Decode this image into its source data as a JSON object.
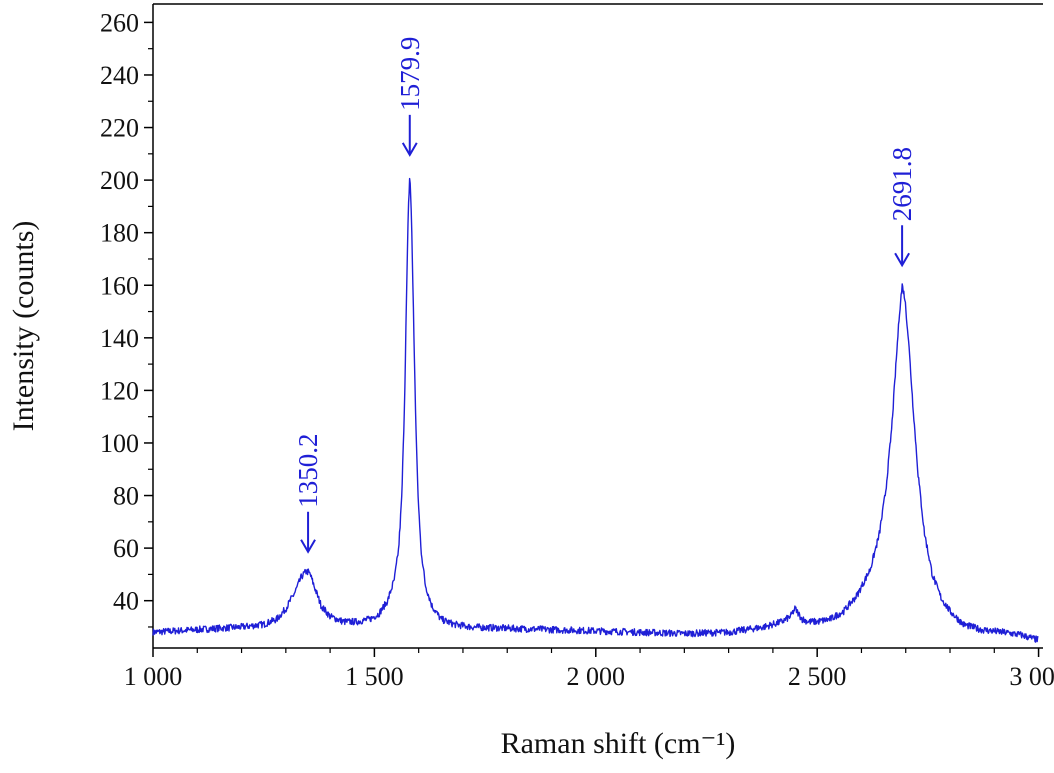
{
  "chart_data": {
    "type": "line",
    "title": "",
    "xlabel": "Raman shift (cm⁻¹)",
    "ylabel": "Intensity (counts)",
    "xlim": [
      1000,
      3010
    ],
    "ylim": [
      22,
      267
    ],
    "grid": false,
    "legend": "none",
    "color": "#1f1fd6",
    "x_ticks": [
      {
        "value": 1000,
        "label": "1 000"
      },
      {
        "value": 1500,
        "label": "1 500"
      },
      {
        "value": 2000,
        "label": "2 000"
      },
      {
        "value": 2500,
        "label": "2 500"
      },
      {
        "value": 3000,
        "label": "3 000"
      }
    ],
    "y_ticks": [
      {
        "value": 40,
        "label": "40"
      },
      {
        "value": 60,
        "label": "60"
      },
      {
        "value": 80,
        "label": "80"
      },
      {
        "value": 100,
        "label": "100"
      },
      {
        "value": 120,
        "label": "120"
      },
      {
        "value": 140,
        "label": "140"
      },
      {
        "value": 160,
        "label": "160"
      },
      {
        "value": 180,
        "label": "180"
      },
      {
        "value": 200,
        "label": "200"
      },
      {
        "value": 220,
        "label": "220"
      },
      {
        "value": 240,
        "label": "240"
      },
      {
        "value": 260,
        "label": "260"
      }
    ],
    "series": [
      {
        "x": [
          1000,
          1050,
          1100,
          1150,
          1200,
          1250,
          1280,
          1300,
          1320,
          1335,
          1345,
          1350,
          1355,
          1365,
          1380,
          1400,
          1430,
          1460,
          1490,
          1510,
          1530,
          1545,
          1555,
          1562,
          1568,
          1573,
          1577,
          1580,
          1583,
          1587,
          1592,
          1598,
          1605,
          1615,
          1630,
          1650,
          1680,
          1720,
          1800,
          1900,
          2000,
          2100,
          2200,
          2300,
          2380,
          2420,
          2440,
          2450,
          2458,
          2466,
          2480,
          2500,
          2530,
          2560,
          2590,
          2620,
          2640,
          2655,
          2668,
          2678,
          2686,
          2692,
          2698,
          2706,
          2716,
          2728,
          2742,
          2760,
          2780,
          2800,
          2830,
          2870,
          2920,
          2960,
          3000
        ],
        "y": [
          28,
          28.5,
          29,
          29.5,
          30,
          31,
          33,
          37,
          43,
          49,
          51,
          51,
          50,
          45,
          38,
          34,
          32,
          32,
          33,
          35,
          40,
          48,
          60,
          80,
          115,
          160,
          190,
          202,
          190,
          160,
          118,
          82,
          60,
          46,
          38,
          33,
          31,
          30,
          29.5,
          29,
          28.5,
          28,
          27.5,
          28,
          30,
          32,
          34,
          37,
          35,
          33,
          32,
          32,
          33,
          36,
          42,
          52,
          65,
          82,
          105,
          130,
          150,
          160,
          155,
          140,
          115,
          88,
          66,
          50,
          41,
          36,
          31,
          29,
          28,
          27,
          25
        ]
      }
    ],
    "annotations": [
      {
        "text": "1350.2",
        "x": 1350.2,
        "y": 51
      },
      {
        "text": "1579.9",
        "x": 1579.9,
        "y": 202
      },
      {
        "text": "2691.8",
        "x": 2691.8,
        "y": 160
      }
    ]
  }
}
